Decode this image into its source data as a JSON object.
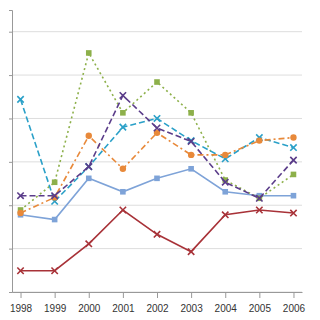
{
  "chart_data": {
    "type": "line",
    "categories": [
      "1998",
      "1999",
      "2000",
      "2001",
      "2002",
      "2003",
      "2004",
      "2005",
      "2006"
    ],
    "series": [
      {
        "color": "#a83238",
        "marker": "x",
        "line_style": "solid",
        "values": [
          0.49,
          0.49,
          1.11,
          1.89,
          1.33,
          0.93,
          1.78,
          1.89,
          1.82
        ]
      },
      {
        "color": "#7ea3d8",
        "marker": "square",
        "line_style": "solid",
        "values": [
          1.78,
          1.67,
          2.62,
          2.31,
          2.62,
          2.84,
          2.31,
          2.22,
          2.22
        ]
      },
      {
        "color": "#8db04a",
        "marker": "square",
        "line_style": "dotted",
        "values": [
          1.89,
          2.53,
          5.51,
          4.13,
          4.84,
          4.13,
          2.58,
          2.16,
          2.71
        ]
      },
      {
        "color": "#2aa0c8",
        "marker": "x",
        "line_style": "dashed",
        "values": [
          4.44,
          2.09,
          2.89,
          3.8,
          4.0,
          3.49,
          3.07,
          3.56,
          3.33
        ]
      },
      {
        "color": "#e8893a",
        "marker": "circle",
        "line_style": "dashdot",
        "values": [
          1.82,
          2.18,
          3.6,
          2.84,
          3.67,
          3.16,
          3.16,
          3.49,
          3.56
        ]
      },
      {
        "color": "#5b3d8a",
        "marker": "x",
        "line_style": "dashed",
        "values": [
          2.22,
          2.22,
          2.89,
          4.53,
          3.78,
          3.47,
          2.53,
          2.16,
          3.04
        ]
      }
    ],
    "ylim": [
      0,
      6.5
    ],
    "yticks": [
      0,
      1,
      2,
      3,
      4,
      5,
      6
    ],
    "grid": true,
    "tick_labels": "x"
  }
}
